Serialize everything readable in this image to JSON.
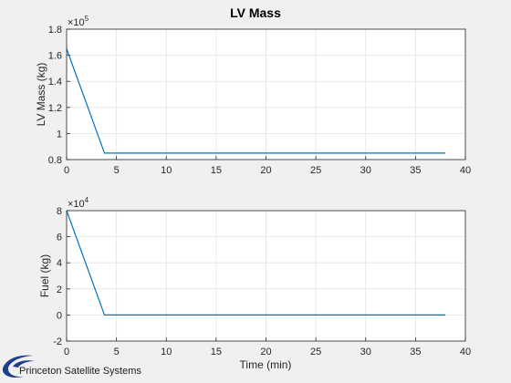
{
  "colors": {
    "background": "#f0f0f0",
    "axes": "#ffffff",
    "line": "#0072bd",
    "grid": "#e3e3e3",
    "logo": "#1e3f8a"
  },
  "logo": {
    "text": "Princeton Satellite Systems",
    "icon": "orbit-swoosh-logo"
  },
  "chart_data": [
    {
      "type": "line",
      "title": "LV Mass",
      "xlabel": "",
      "ylabel": "LV Mass (kg)",
      "exponent_label": "×10",
      "exponent_power": "5",
      "xlim": [
        0,
        40
      ],
      "ylim": [
        0.8,
        1.8
      ],
      "xticks": [
        0,
        5,
        10,
        15,
        20,
        25,
        30,
        35,
        40
      ],
      "yticks": [
        0.8,
        1,
        1.2,
        1.4,
        1.6,
        1.8
      ],
      "grid": true,
      "series": [
        {
          "x": [
            0,
            3.8,
            38
          ],
          "y": [
            1.65,
            0.85,
            0.85
          ]
        }
      ]
    },
    {
      "type": "line",
      "title": "",
      "xlabel": "Time (min)",
      "ylabel": "Fuel (kg)",
      "exponent_label": "×10",
      "exponent_power": "4",
      "xlim": [
        0,
        40
      ],
      "ylim": [
        -2,
        8
      ],
      "xticks": [
        0,
        5,
        10,
        15,
        20,
        25,
        30,
        35,
        40
      ],
      "yticks": [
        -2,
        0,
        2,
        4,
        6,
        8
      ],
      "grid": true,
      "series": [
        {
          "x": [
            0,
            3.8,
            38
          ],
          "y": [
            8,
            0,
            0
          ]
        }
      ]
    }
  ]
}
